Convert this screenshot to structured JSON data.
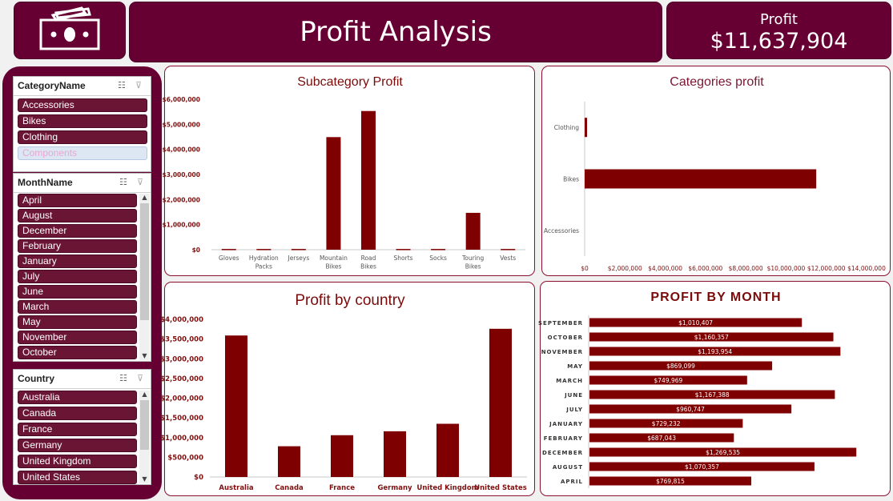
{
  "header": {
    "title": "Profit Analysis",
    "kpi_label": "Profit",
    "kpi_value": "$11,637,904",
    "logo_icon": "money-icon"
  },
  "slicers": {
    "category": {
      "title": "CategoryName",
      "items": [
        "Accessories",
        "Bikes",
        "Clothing",
        "Components"
      ],
      "selected": [
        true,
        true,
        true,
        false
      ]
    },
    "month": {
      "title": "MonthName",
      "items": [
        "April",
        "August",
        "December",
        "February",
        "January",
        "July",
        "June",
        "March",
        "May",
        "November",
        "October"
      ]
    },
    "country": {
      "title": "Country",
      "items": [
        "Australia",
        "Canada",
        "France",
        "Germany",
        "United Kingdom",
        "United States"
      ]
    }
  },
  "colors": {
    "bar": "#7f0000",
    "tile": "#660033",
    "panel_border": "#8a1030"
  },
  "chart_data": [
    {
      "id": "subcat",
      "type": "bar",
      "title": "Subcategory Profit",
      "categories": [
        "Gloves",
        "Hydration Packs",
        "Jerseys",
        "Mountain Bikes",
        "Road Bikes",
        "Shorts",
        "Socks",
        "Touring Bikes",
        "Vests"
      ],
      "values": [
        30000,
        30000,
        30000,
        4490000,
        5530000,
        30000,
        30000,
        1470000,
        30000
      ],
      "ylim": [
        0,
        6000000
      ],
      "yticks": [
        "$0",
        "$1,000,000",
        "$2,000,000",
        "$3,000,000",
        "$4,000,000",
        "$5,000,000",
        "$6,000,000"
      ],
      "grid": false
    },
    {
      "id": "categories",
      "type": "bar",
      "orientation": "horizontal",
      "title": "Categories profit",
      "categories": [
        "Clothing",
        "Bikes",
        "Accessories"
      ],
      "values": [
        120000,
        11500000,
        0
      ],
      "xlim": [
        0,
        14000000
      ],
      "xticks": [
        "$0",
        "$2,000,000",
        "$4,000,000",
        "$6,000,000",
        "$8,000,000",
        "$10,000,000",
        "$12,000,000",
        "$14,000,000"
      ],
      "grid": false
    },
    {
      "id": "country",
      "type": "bar",
      "title": "Profit by country",
      "categories": [
        "Australia",
        "Canada",
        "France",
        "Germany",
        "United Kingdom",
        "United States"
      ],
      "values": [
        3590000,
        780000,
        1060000,
        1160000,
        1350000,
        3760000
      ],
      "ylim": [
        0,
        4000000
      ],
      "yticks": [
        "$0",
        "$500,000",
        "$1,000,000",
        "$1,500,000",
        "$2,000,000",
        "$2,500,000",
        "$3,000,000",
        "$3,500,000",
        "$4,000,000"
      ],
      "grid": false
    },
    {
      "id": "month",
      "type": "bar",
      "orientation": "horizontal",
      "title": "PROFIT BY MONTH",
      "categories": [
        "SEPTEMBER",
        "OCTOBER",
        "NOVEMBER",
        "MAY",
        "MARCH",
        "JUNE",
        "JULY",
        "JANUARY",
        "FEBRUARY",
        "DECEMBER",
        "AUGUST",
        "APRIL"
      ],
      "values": [
        1010407,
        1160357,
        1193954,
        869099,
        749969,
        1167388,
        960747,
        729232,
        687043,
        1269535,
        1070357,
        769815
      ],
      "labels": [
        "$1,010,407",
        "$1,160,357",
        "$1,193,954",
        "$869,099",
        "$749,969",
        "$1,167,388",
        "$960,747",
        "$729,232",
        "$687,043",
        "$1,269,535",
        "$1,070,357",
        "$769,815"
      ],
      "grid": false
    }
  ]
}
